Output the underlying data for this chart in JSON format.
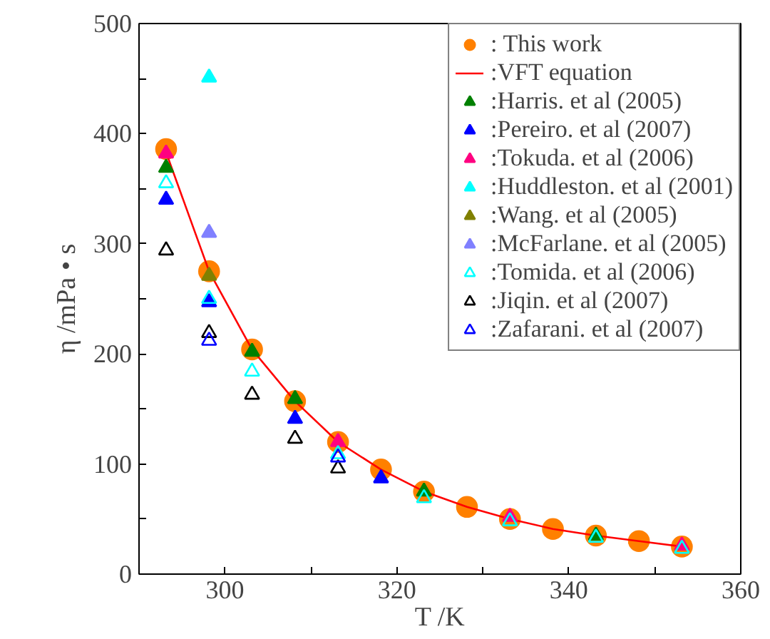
{
  "chart_data": {
    "type": "scatter",
    "xlabel": "T /K",
    "ylabel": "η /mPa • s",
    "xlim": [
      290,
      360
    ],
    "xticks": [
      {
        "value": 290,
        "label": null
      },
      300,
      {
        "value": 310,
        "label": null
      },
      320,
      {
        "value": 330,
        "label": null
      },
      340,
      {
        "value": 350,
        "label": null
      },
      360
    ],
    "ylim": [
      0,
      500
    ],
    "yticks": [
      0,
      {
        "value": 50,
        "label": null
      },
      100,
      {
        "value": 150,
        "label": null
      },
      200,
      {
        "value": 250,
        "label": null
      },
      300,
      {
        "value": 350,
        "label": null
      },
      400,
      {
        "value": 450,
        "label": null
      },
      500
    ],
    "grid": false,
    "legend": "top right",
    "series": [
      {
        "name": ": This work",
        "color": "#ff8000",
        "marker": "circle",
        "x": [
          293.15,
          298.15,
          303.15,
          308.15,
          313.15,
          318.15,
          323.15,
          328.15,
          333.15,
          338.15,
          343.15,
          348.15,
          353.15
        ],
        "values": [
          386,
          275,
          204,
          157,
          120,
          95,
          75,
          61,
          50,
          41,
          35,
          30,
          25
        ]
      },
      {
        "name": ":VFT equation",
        "type": "line",
        "color": "#ff0000",
        "marker": "none",
        "x": [
          293.15,
          298.15,
          303.15,
          308.15,
          313.15,
          318.15,
          323.15,
          328.15,
          333.15,
          338.15,
          343.15,
          348.15,
          353.15
        ],
        "values": [
          383,
          275,
          204,
          157,
          120,
          95,
          75,
          61,
          50,
          41,
          35,
          30,
          25
        ]
      },
      {
        "name": ":Harris. et al (2005)",
        "color": "#008000",
        "marker": "triangle",
        "x": [
          293.15,
          303.15,
          308.15,
          323.15,
          343.15
        ],
        "values": [
          369,
          202,
          159,
          75,
          35
        ]
      },
      {
        "name": ":Pereiro. et al (2007)",
        "color": "#0000ff",
        "marker": "triangle",
        "x": [
          293.15,
          298.15,
          308.15,
          318.15
        ],
        "values": [
          340,
          247,
          141,
          87
        ]
      },
      {
        "name": ":Tokuda. et al (2006)",
        "color": "#ff0080",
        "marker": "triangle",
        "x": [
          293.15,
          313.15,
          333.15,
          353.15
        ],
        "values": [
          382,
          120,
          52,
          26
        ]
      },
      {
        "name": ":Huddleston. et al (2001)",
        "color": "#00ffff",
        "marker": "triangle",
        "x": [
          298.15
        ],
        "values": [
          451
        ]
      },
      {
        "name": ":Wang. et al (2005)",
        "color": "#808000",
        "marker": "triangle",
        "x": [
          298.15
        ],
        "values": [
          271
        ]
      },
      {
        "name": ":McFarlane. et al (2005)",
        "color": "#8080ff",
        "marker": "triangle",
        "x": [
          298.15
        ],
        "values": [
          310
        ]
      },
      {
        "name": ":Tomida. et al (2006)",
        "color": "#00ffff",
        "marker": "triangle_open",
        "x": [
          293.15,
          298.15,
          303.15,
          313.15,
          323.15,
          333.15,
          343.15,
          353.15
        ],
        "values": [
          355,
          250,
          184,
          109,
          69,
          48,
          33,
          23
        ]
      },
      {
        "name": ":Jiqin. et al (2007)",
        "color": "#000000",
        "marker": "triangle_open",
        "x": [
          293.15,
          298.15,
          303.15,
          308.15,
          313.15
        ],
        "values": [
          294,
          219,
          163,
          123,
          96
        ]
      },
      {
        "name": ":Zafarani. et al (2007)",
        "color": "#0000ff",
        "marker": "triangle_open",
        "x": [
          298.15,
          313.15
        ],
        "values": [
          212,
          106
        ]
      }
    ]
  }
}
